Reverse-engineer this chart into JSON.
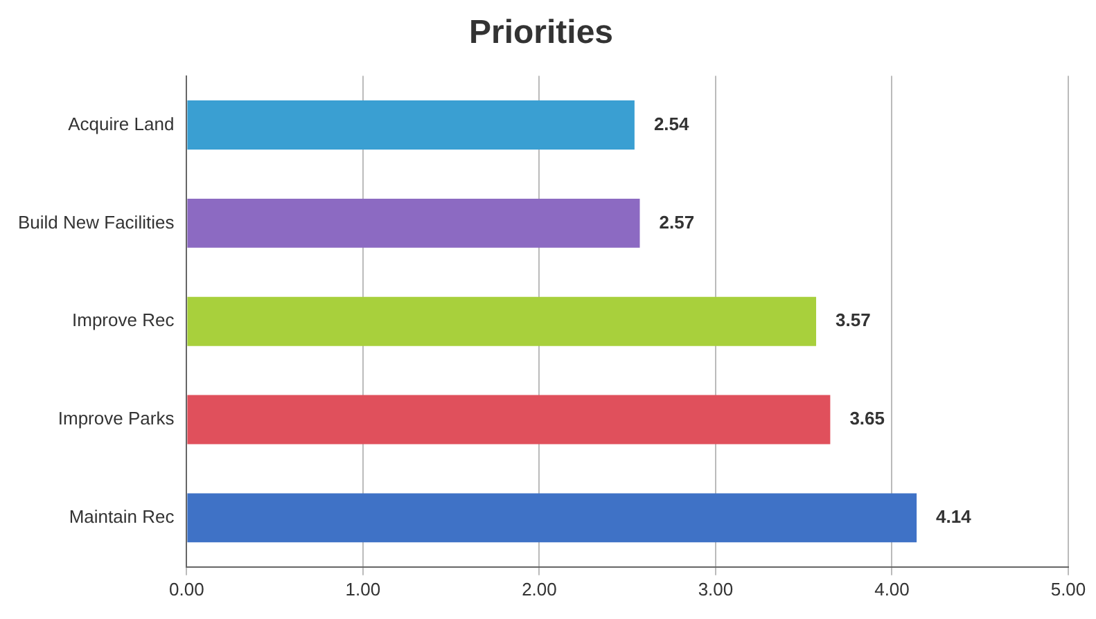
{
  "chart_data": {
    "type": "bar",
    "orientation": "horizontal",
    "title": "Priorities",
    "categories": [
      "Acquire Land",
      "Build New Facilities",
      "Improve Rec",
      "Improve Parks",
      "Maintain Rec"
    ],
    "values": [
      2.54,
      2.57,
      3.57,
      3.65,
      4.14
    ],
    "colors": [
      "#3a9fd2",
      "#8c6ac2",
      "#a8d03c",
      "#e0505c",
      "#3f72c6"
    ],
    "xlim": [
      0,
      5
    ],
    "xticks": [
      {
        "value": 0,
        "label": "0.00"
      },
      {
        "value": 1,
        "label": "1.00"
      },
      {
        "value": 2,
        "label": "2.00"
      },
      {
        "value": 3,
        "label": "3.00"
      },
      {
        "value": 4,
        "label": "4.00"
      },
      {
        "value": 5,
        "label": "5.00"
      }
    ],
    "grid": "x",
    "data_labels": true,
    "legend": false
  }
}
